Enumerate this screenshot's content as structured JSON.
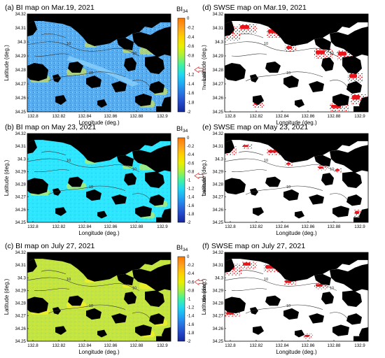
{
  "chart_data": [
    {
      "type": "heatmap",
      "panel": "a",
      "title": "(a) BI map on Mar.19, 2021",
      "xlabel": "Longitude (deg.)",
      "ylabel": "Latitude (deg.)",
      "x_ticks": [
        "132.8",
        "132.82",
        "132.84",
        "132.86",
        "132.88",
        "132.9"
      ],
      "y_ticks": [
        "34.32",
        "34.31",
        "34.3",
        "34.29",
        "34.28",
        "34.27",
        "34.26",
        "34.25"
      ],
      "colorbar": {
        "title": "BI",
        "title_sub": "34",
        "ticks": [
          "0",
          "-0.2",
          "-0.4",
          "-0.6",
          "-0.8",
          "-1",
          "-1.2",
          "-1.4",
          "-1.6",
          "-1.8",
          "-2"
        ],
        "label": "Threshold",
        "threshold": -1.1
      },
      "contour_labels": [
        "10",
        "10",
        "10"
      ]
    },
    {
      "type": "heatmap",
      "panel": "b",
      "title": "(b) BI map on May 23, 2021",
      "xlabel": "Longitude (deg.)",
      "ylabel": "Latitude (deg.)",
      "x_ticks": [
        "132.8",
        "132.82",
        "132.84",
        "132.86",
        "132.88",
        "132.9"
      ],
      "y_ticks": [
        "34.32",
        "34.31",
        "34.3",
        "34.29",
        "34.28",
        "34.27",
        "34.26",
        "34.25"
      ],
      "colorbar": {
        "title": "BI",
        "title_sub": "34",
        "ticks": [
          "0",
          "-0.2",
          "-0.4",
          "-0.6",
          "-0.8",
          "-1",
          "-1.2",
          "-1.4",
          "-1.6",
          "-1.8",
          "-2"
        ],
        "label": "Threshold",
        "threshold": -0.9
      },
      "contour_labels": [
        "10",
        "10",
        "10"
      ]
    },
    {
      "type": "heatmap",
      "panel": "c",
      "title": "(c) BI map on July 27, 2021",
      "xlabel": "Longitude (deg.)",
      "ylabel": "Latitude (deg.)",
      "x_ticks": [
        "132.8",
        "132.82",
        "132.84",
        "132.86",
        "132.88",
        "132.9"
      ],
      "y_ticks": [
        "34.32",
        "34.31",
        "34.3",
        "34.29",
        "34.28",
        "34.27",
        "34.26",
        "34.25"
      ],
      "colorbar": {
        "title": "BI",
        "title_sub": "34",
        "ticks": [
          "0",
          "-0.2",
          "-0.4",
          "-0.6",
          "-0.8",
          "-1",
          "-1.2",
          "-1.4",
          "-1.6",
          "-1.8",
          "-2"
        ],
        "label": "Threshold",
        "threshold": -0.6
      },
      "contour_labels": [
        "10",
        "10",
        "10"
      ]
    },
    {
      "type": "heatmap",
      "panel": "d",
      "title": "(d) SWSE map on Mar.19, 2021",
      "xlabel": "Longitude (deg.)",
      "ylabel": "Latitude (deg.)",
      "x_ticks": [
        "132.8",
        "132.82",
        "132.84",
        "132.86",
        "132.88",
        "132.9"
      ],
      "y_ticks": [
        "34.32",
        "34.31",
        "34.3",
        "34.29",
        "34.28",
        "34.27",
        "34.26",
        "34.25"
      ],
      "contour_labels": [
        "10",
        "10",
        "10"
      ]
    },
    {
      "type": "heatmap",
      "panel": "e",
      "title": "(e) SWSE map on May 23, 2021",
      "xlabel": "Longitude (deg.)",
      "ylabel": "Latitude (deg.)",
      "x_ticks": [
        "132.8",
        "132.82",
        "132.84",
        "132.86",
        "132.88",
        "132.9"
      ],
      "y_ticks": [
        "34.32",
        "34.31",
        "34.3",
        "34.29",
        "34.28",
        "34.27",
        "34.26",
        "34.25"
      ],
      "contour_labels": [
        "10",
        "10",
        "10"
      ]
    },
    {
      "type": "heatmap",
      "panel": "f",
      "title": "(f) SWSE map on July 27, 2021",
      "xlabel": "Longitude (deg.)",
      "ylabel": "Latitude (deg.)",
      "x_ticks": [
        "132.8",
        "132.82",
        "132.84",
        "132.86",
        "132.88",
        "132.9"
      ],
      "y_ticks": [
        "34.32",
        "34.31",
        "34.3",
        "34.29",
        "34.28",
        "34.27",
        "34.26",
        "34.25"
      ],
      "contour_labels": [
        "10",
        "10",
        "10"
      ]
    }
  ],
  "colors": {
    "land": "#000000",
    "swse": "#e8141c",
    "bi_a_water": "#5fb4f0",
    "bi_b_water": "#2fe4ff",
    "bi_c_water": "#c8e640",
    "bi_shallow": "#eef02a",
    "threshold_arrow": "#e03030",
    "colormap": [
      "#ff7a00",
      "#ffb020",
      "#f7e600",
      "#c6ef2f",
      "#5ff56a",
      "#2fe8d8",
      "#21b8f4",
      "#2f7de6",
      "#2244c8",
      "#1630a0"
    ]
  }
}
